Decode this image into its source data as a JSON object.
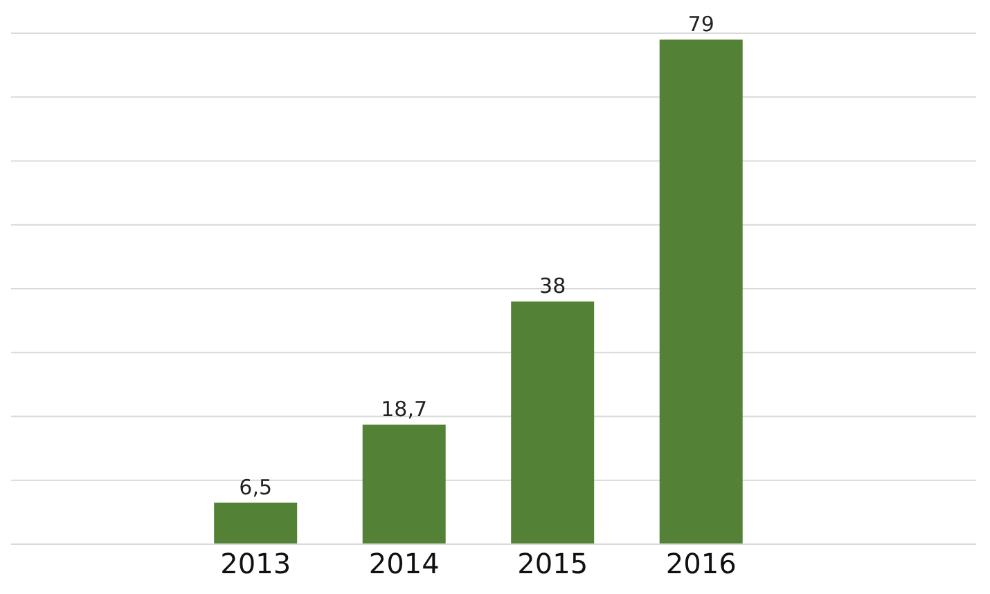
{
  "chart_data": {
    "type": "bar",
    "categories": [
      "2013",
      "2014",
      "2015",
      "2016"
    ],
    "values": [
      6.5,
      18.7,
      38,
      79
    ],
    "value_labels": [
      "6,5",
      "18,7",
      "38",
      "79"
    ],
    "color": "#538135",
    "grid": "y",
    "tick_labels": "x"
  }
}
